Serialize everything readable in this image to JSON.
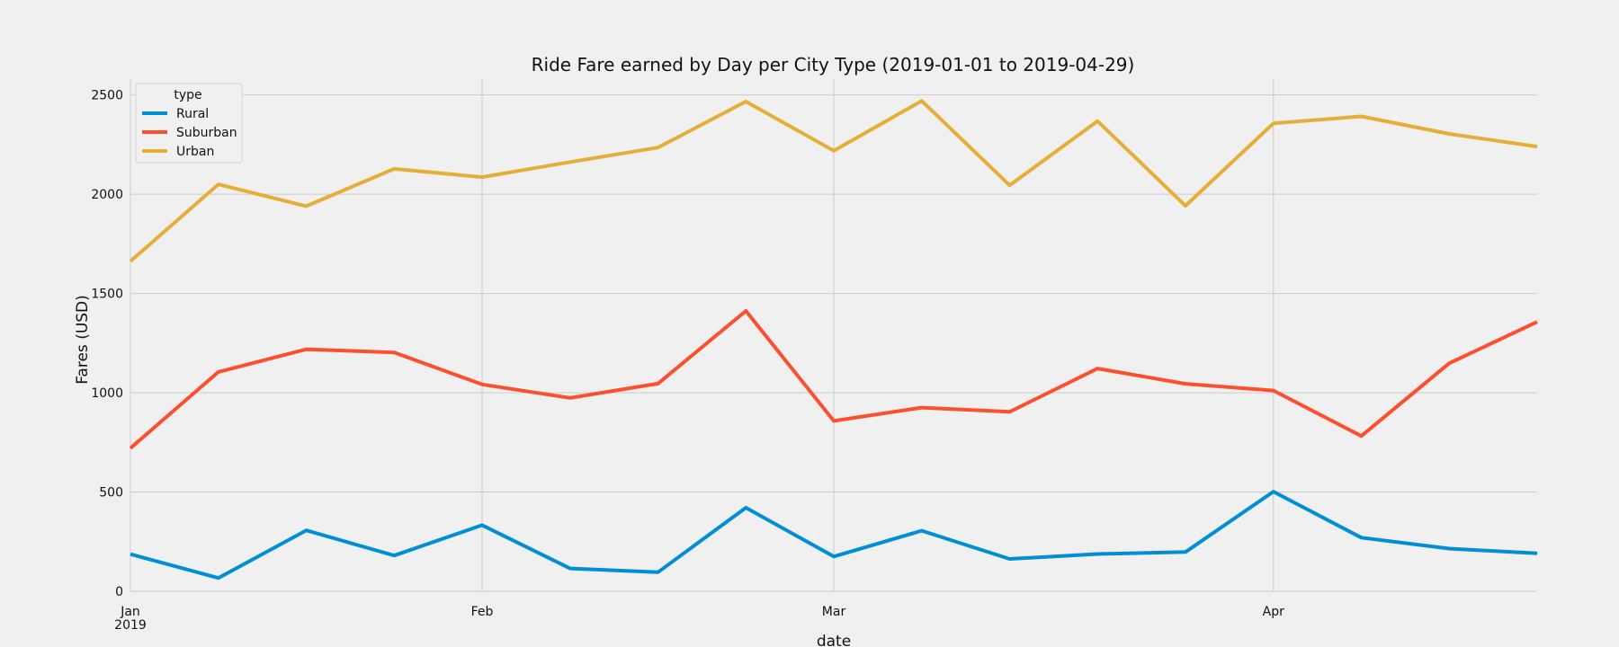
{
  "chart_data": {
    "type": "line",
    "title": "Ride Fare earned by Day per City Type (2019-01-01 to 2019-04-29)",
    "xlabel": "date",
    "ylabel": "Fares (USD)",
    "x": [
      "2019-01-06",
      "2019-01-13",
      "2019-01-20",
      "2019-01-27",
      "2019-02-03",
      "2019-02-10",
      "2019-02-17",
      "2019-02-24",
      "2019-03-03",
      "2019-03-10",
      "2019-03-17",
      "2019-03-24",
      "2019-03-31",
      "2019-04-07",
      "2019-04-14",
      "2019-04-21",
      "2019-04-28"
    ],
    "xlim": [
      "2019-01-06",
      "2019-04-28"
    ],
    "x_ticks": [
      {
        "date": "2019-01-06",
        "label": "Jan",
        "sublabel": "2019"
      },
      {
        "date": "2019-02-03",
        "label": "Feb",
        "sublabel": ""
      },
      {
        "date": "2019-03-03",
        "label": "Mar",
        "sublabel": ""
      },
      {
        "date": "2019-04-07",
        "label": "Apr",
        "sublabel": ""
      }
    ],
    "ylim": [
      0,
      2580
    ],
    "y_ticks": [
      0,
      500,
      1000,
      1500,
      2000,
      2500
    ],
    "grid": true,
    "legend": {
      "title": "type",
      "position": "top-left"
    },
    "series": [
      {
        "name": "Rural",
        "color": "#008fd5",
        "values": [
          187,
          67,
          307,
          180,
          333,
          115,
          96,
          421,
          175,
          305,
          163,
          188,
          198,
          502,
          270,
          215,
          191
        ]
      },
      {
        "name": "Suburban",
        "color": "#fc4f30",
        "values": [
          721,
          1105,
          1219,
          1203,
          1042,
          974,
          1046,
          1412,
          858,
          925,
          904,
          1122,
          1045,
          1011,
          782,
          1149,
          1357
        ]
      },
      {
        "name": "Urban",
        "color": "#e5ae38",
        "values": [
          1662,
          2050,
          1940,
          2128,
          2086,
          2162,
          2235,
          2467,
          2219,
          2470,
          2045,
          2368,
          1942,
          2357,
          2392,
          2304,
          2240
        ]
      }
    ]
  }
}
